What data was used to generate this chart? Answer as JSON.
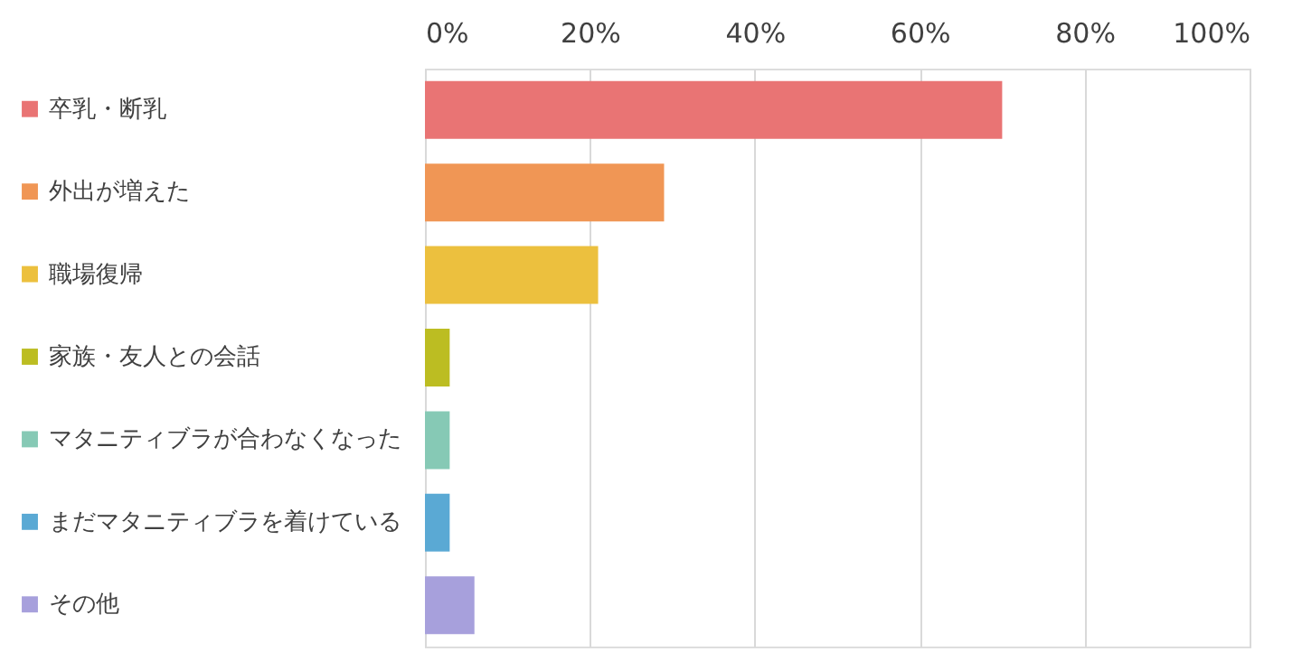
{
  "chart_data": {
    "type": "bar",
    "orientation": "horizontal",
    "categories": [
      null,
      null,
      null,
      null,
      null,
      null,
      null
    ],
    "series": [
      {
        "name": "卒乳・断乳",
        "color": "#e97474",
        "values": [
          70,
          null,
          null,
          null,
          null,
          null,
          null
        ]
      },
      {
        "name": "外出が増えた",
        "color": "#f09655",
        "values": [
          null,
          29,
          null,
          null,
          null,
          null,
          null
        ]
      },
      {
        "name": "職場復帰",
        "color": "#ecc03e",
        "values": [
          null,
          null,
          21,
          null,
          null,
          null,
          null
        ]
      },
      {
        "name": "家族・友人との会話",
        "color": "#bcbd22",
        "values": [
          null,
          null,
          null,
          3,
          null,
          null,
          null
        ]
      },
      {
        "name": "マタニティブラが合わなくなった",
        "color": "#86c9b5",
        "values": [
          null,
          null,
          null,
          null,
          3,
          null,
          null
        ]
      },
      {
        "name": "まだマタニティブラを着けている",
        "color": "#5aa9d4",
        "values": [
          null,
          null,
          null,
          null,
          null,
          3,
          null
        ]
      },
      {
        "name": "その他",
        "color": "#a7a0dc",
        "values": [
          null,
          null,
          null,
          null,
          null,
          null,
          6
        ]
      }
    ],
    "xlim": [
      0,
      100
    ],
    "xticks": [
      {
        "value": 0,
        "label": "0%"
      },
      {
        "value": 20,
        "label": "20%"
      },
      {
        "value": 40,
        "label": "40%"
      },
      {
        "value": 60,
        "label": "60%"
      },
      {
        "value": 80,
        "label": "80%"
      },
      {
        "value": 100,
        "label": "100%"
      }
    ],
    "grid": "x",
    "legend": "left"
  }
}
